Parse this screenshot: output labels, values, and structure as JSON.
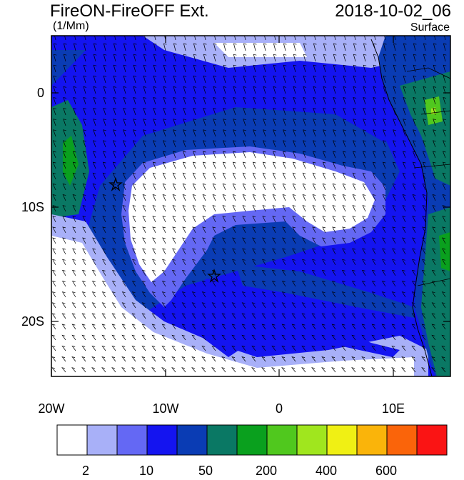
{
  "title": "FireON-FireOFF Ext.",
  "units": "(1/Mm)",
  "datetime": "2018-10-02_06",
  "level": "Surface",
  "lon_ticks": [
    "20W",
    "10W",
    "0",
    "10E"
  ],
  "lat_ticks": [
    "0",
    "10S",
    "20S"
  ],
  "colorbar": {
    "colors": [
      "#ffffff",
      "#a8b0f8",
      "#6468f4",
      "#1414f0",
      "#0a3cb4",
      "#0a7864",
      "#0aa01e",
      "#50c81e",
      "#a0e61e",
      "#f0f014",
      "#fab40a",
      "#fa640a",
      "#fa1414"
    ],
    "labels": [
      "2",
      "10",
      "50",
      "200",
      "400",
      "600"
    ]
  },
  "markers": [
    {
      "name": "star-marker-1",
      "lon": -14.5,
      "lat": -8.0
    },
    {
      "name": "star-marker-2",
      "lon": -5.8,
      "lat": -16.0
    }
  ]
}
